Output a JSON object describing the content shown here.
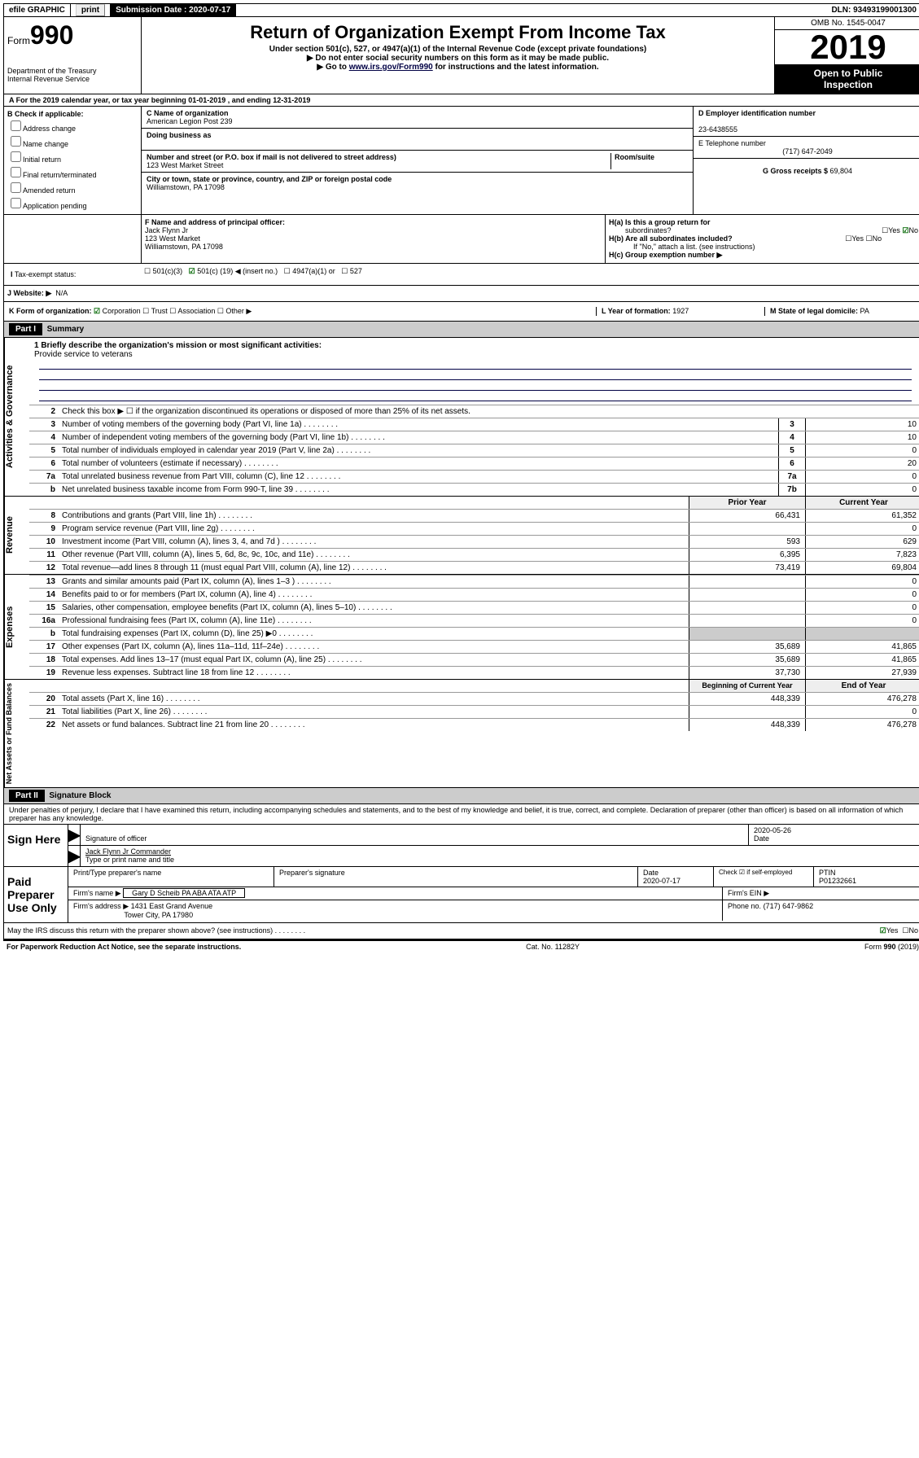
{
  "topbar": {
    "efile": "efile GRAPHIC",
    "print": "print",
    "subdate_lbl": "Submission Date :",
    "subdate": "2020-07-17",
    "dln_lbl": "DLN:",
    "dln": "93493199001300"
  },
  "header": {
    "form_lbl": "Form",
    "form_no": "990",
    "dept1": "Department of the Treasury",
    "dept2": "Internal Revenue Service",
    "title": "Return of Organization Exempt From Income Tax",
    "sub1": "Under section 501(c), 527, or 4947(a)(1) of the Internal Revenue Code (except private foundations)",
    "sub2": "Do not enter social security numbers on this form as it may be made public.",
    "sub3_a": "Go to ",
    "sub3_link": "www.irs.gov/Form990",
    "sub3_b": " for instructions and the latest information.",
    "omb": "OMB No. 1545-0047",
    "year": "2019",
    "inspect1": "Open to Public",
    "inspect2": "Inspection"
  },
  "rowA": "For the 2019 calendar year, or tax year beginning 01-01-2019   , and ending 12-31-2019",
  "B": {
    "hdr": "B Check if applicable:",
    "o1": "Address change",
    "o2": "Name change",
    "o3": "Initial return",
    "o4": "Final return/terminated",
    "o5": "Amended return",
    "o6": "Application pending"
  },
  "C": {
    "name_lbl": "C Name of organization",
    "name": "American Legion Post 239",
    "dba_lbl": "Doing business as",
    "addr_lbl": "Number and street (or P.O. box if mail is not delivered to street address)",
    "room_lbl": "Room/suite",
    "addr": "123 West Market Street",
    "city_lbl": "City or town, state or province, country, and ZIP or foreign postal code",
    "city": "Williamstown, PA  17098"
  },
  "D": {
    "lbl": "D Employer identification number",
    "val": "23-6438555"
  },
  "E": {
    "lbl": "E Telephone number",
    "val": "(717) 647-2049"
  },
  "G": {
    "lbl": "G Gross receipts $",
    "val": "69,804"
  },
  "F": {
    "lbl": "F  Name and address of principal officer:",
    "l1": "Jack Flynn Jr",
    "l2": "123 West Market",
    "l3": "Williamstown, PA  17098"
  },
  "H": {
    "a": "H(a)  Is this a group return for",
    "a2": "subordinates?",
    "b": "H(b)  Are all subordinates included?",
    "bnote": "If \"No,\" attach a list. (see instructions)",
    "c": "H(c)  Group exemption number ▶",
    "yes": "Yes",
    "no": "No"
  },
  "I": {
    "lbl": "Tax-exempt status:",
    "o1": "501(c)(3)",
    "o2a": "501(c) (",
    "o2n": "19",
    "o2b": ") ◀ (insert no.)",
    "o3": "4947(a)(1) or",
    "o4": "527"
  },
  "J": {
    "lbl": "J   Website: ▶",
    "val": "N/A"
  },
  "K": {
    "lbl": "K Form of organization:",
    "o1": "Corporation",
    "o2": "Trust",
    "o3": "Association",
    "o4": "Other ▶"
  },
  "L": {
    "lbl": "L Year of formation:",
    "val": "1927"
  },
  "M": {
    "lbl": "M State of legal domicile:",
    "val": "PA"
  },
  "part1": {
    "hdr": "Part I",
    "title": "Summary",
    "tabs": {
      "gov": "Activities & Governance",
      "rev": "Revenue",
      "exp": "Expenses",
      "net": "Net Assets or Fund Balances"
    },
    "l1_lbl": "1  Briefly describe the organization's mission or most significant activities:",
    "l1_val": "Provide service to veterans",
    "l2": "Check this box ▶ ☐  if the organization discontinued its operations or disposed of more than 25% of its net assets.",
    "rows_gov": [
      {
        "n": "3",
        "d": "Number of voting members of the governing body (Part VI, line 1a)",
        "b": "3",
        "v": "10"
      },
      {
        "n": "4",
        "d": "Number of independent voting members of the governing body (Part VI, line 1b)",
        "b": "4",
        "v": "10"
      },
      {
        "n": "5",
        "d": "Total number of individuals employed in calendar year 2019 (Part V, line 2a)",
        "b": "5",
        "v": "0"
      },
      {
        "n": "6",
        "d": "Total number of volunteers (estimate if necessary)",
        "b": "6",
        "v": "20"
      },
      {
        "n": "7a",
        "d": "Total unrelated business revenue from Part VIII, column (C), line 12",
        "b": "7a",
        "v": "0"
      },
      {
        "n": "b",
        "d": "Net unrelated business taxable income from Form 990-T, line 39",
        "b": "7b",
        "v": "0"
      }
    ],
    "colhdr": {
      "py": "Prior Year",
      "cy": "Current Year",
      "bcy": "Beginning of Current Year",
      "ey": "End of Year"
    },
    "rows_rev": [
      {
        "n": "8",
        "d": "Contributions and grants (Part VIII, line 1h)",
        "py": "66,431",
        "cy": "61,352"
      },
      {
        "n": "9",
        "d": "Program service revenue (Part VIII, line 2g)",
        "py": "",
        "cy": "0"
      },
      {
        "n": "10",
        "d": "Investment income (Part VIII, column (A), lines 3, 4, and 7d )",
        "py": "593",
        "cy": "629"
      },
      {
        "n": "11",
        "d": "Other revenue (Part VIII, column (A), lines 5, 6d, 8c, 9c, 10c, and 11e)",
        "py": "6,395",
        "cy": "7,823"
      },
      {
        "n": "12",
        "d": "Total revenue—add lines 8 through 11 (must equal Part VIII, column (A), line 12)",
        "py": "73,419",
        "cy": "69,804"
      }
    ],
    "rows_exp": [
      {
        "n": "13",
        "d": "Grants and similar amounts paid (Part IX, column (A), lines 1–3 )",
        "py": "",
        "cy": "0"
      },
      {
        "n": "14",
        "d": "Benefits paid to or for members (Part IX, column (A), line 4)",
        "py": "",
        "cy": "0"
      },
      {
        "n": "15",
        "d": "Salaries, other compensation, employee benefits (Part IX, column (A), lines 5–10)",
        "py": "",
        "cy": "0"
      },
      {
        "n": "16a",
        "d": "Professional fundraising fees (Part IX, column (A), line 11e)",
        "py": "",
        "cy": "0"
      },
      {
        "n": "b",
        "d": "Total fundraising expenses (Part IX, column (D), line 25) ▶0",
        "py": "__SHADE__",
        "cy": "__SHADE__"
      },
      {
        "n": "17",
        "d": "Other expenses (Part IX, column (A), lines 11a–11d, 11f–24e)",
        "py": "35,689",
        "cy": "41,865"
      },
      {
        "n": "18",
        "d": "Total expenses. Add lines 13–17 (must equal Part IX, column (A), line 25)",
        "py": "35,689",
        "cy": "41,865"
      },
      {
        "n": "19",
        "d": "Revenue less expenses. Subtract line 18 from line 12",
        "py": "37,730",
        "cy": "27,939"
      }
    ],
    "rows_net": [
      {
        "n": "20",
        "d": "Total assets (Part X, line 16)",
        "py": "448,339",
        "cy": "476,278"
      },
      {
        "n": "21",
        "d": "Total liabilities (Part X, line 26)",
        "py": "",
        "cy": "0"
      },
      {
        "n": "22",
        "d": "Net assets or fund balances. Subtract line 21 from line 20",
        "py": "448,339",
        "cy": "476,278"
      }
    ]
  },
  "part2": {
    "hdr": "Part II",
    "title": "Signature Block",
    "decl": "Under penalties of perjury, I declare that I have examined this return, including accompanying schedules and statements, and to the best of my knowledge and belief, it is true, correct, and complete. Declaration of preparer (other than officer) is based on all information of which preparer has any knowledge.",
    "sign_here": "Sign Here",
    "sig_lbl": "Signature of officer",
    "date_lbl": "Date",
    "sig_date": "2020-05-26",
    "name_lbl": "Type or print name and title",
    "name_val": "Jack Flynn Jr  Commander",
    "paid": "Paid Preparer Use Only",
    "pp_name_lbl": "Print/Type preparer's name",
    "pp_sig_lbl": "Preparer's signature",
    "pp_date_lbl": "Date",
    "pp_date": "2020-07-17",
    "pp_check": "Check ☑ if self-employed",
    "ptin_lbl": "PTIN",
    "ptin": "P01232661",
    "firm_name_lbl": "Firm's name   ▶",
    "firm_name": "Gary D Scheib PA ABA ATA ATP",
    "firm_ein_lbl": "Firm's EIN ▶",
    "firm_addr_lbl": "Firm's address ▶",
    "firm_addr1": "1431 East Grand Avenue",
    "firm_addr2": "Tower City, PA  17980",
    "phone_lbl": "Phone no.",
    "phone": "(717) 647-9862",
    "discuss": "May the IRS discuss this return with the preparer shown above? (see instructions)",
    "yes": "Yes",
    "no": "No"
  },
  "footer": {
    "l": "For Paperwork Reduction Act Notice, see the separate instructions.",
    "m": "Cat. No. 11282Y",
    "r": "Form 990 (2019)"
  }
}
